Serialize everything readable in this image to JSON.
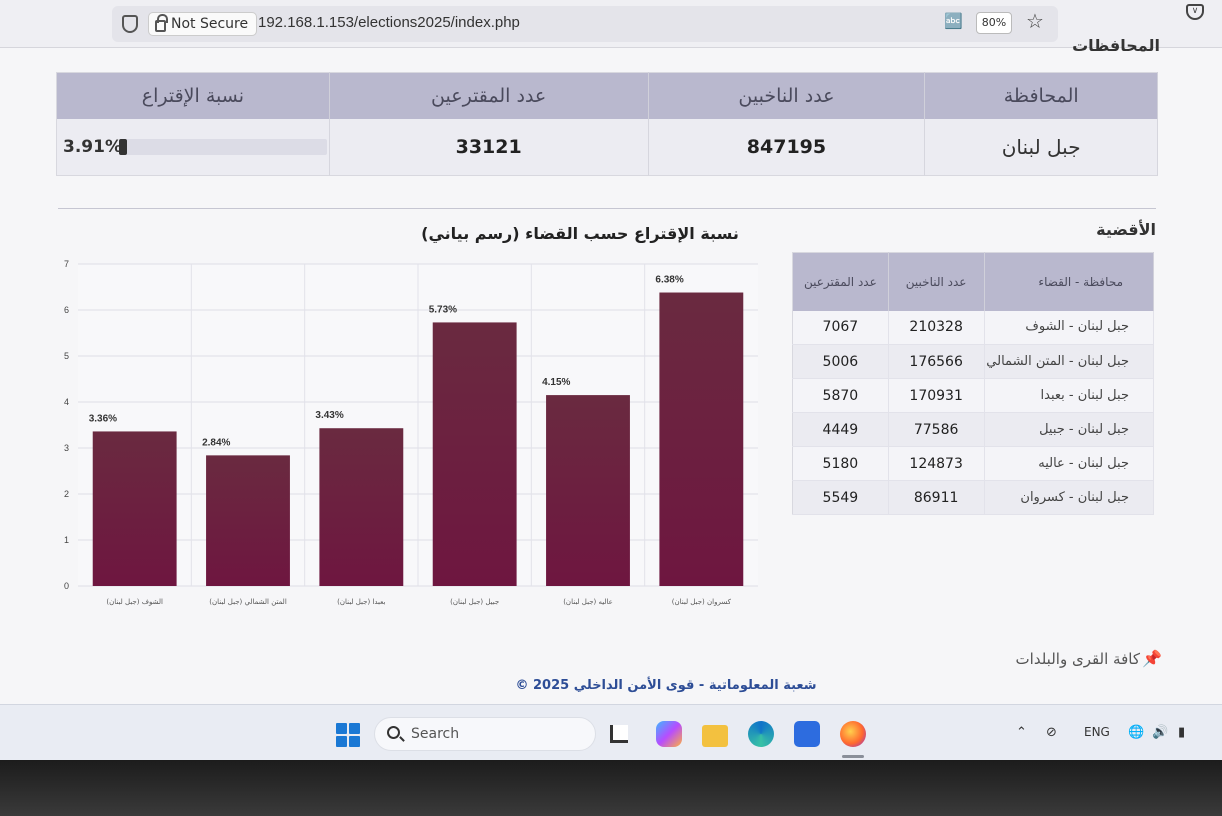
{
  "browser": {
    "not_secure": "Not Secure",
    "url": "192.168.1.153/elections2025/index.php",
    "zoom": "80%"
  },
  "governorates": {
    "section_title": "المحافظات",
    "headers": [
      "المحافظة",
      "عدد الناخبين",
      "عدد المقترعين",
      "نسبة الإقتراع"
    ],
    "row": {
      "name": "جبل لبنان",
      "voters": "847195",
      "ballots": "33121",
      "turnout": "3.91%",
      "turnout_fraction": 0.0391
    }
  },
  "districts": {
    "section_title": "الأقضية",
    "headers": [
      "محافظة - القضاء",
      "عدد الناخبين",
      "عدد المقترعين"
    ],
    "rows": [
      {
        "name": "جبل لبنان - الشوف",
        "voters": "210328",
        "ballots": "7067"
      },
      {
        "name": "جبل لبنان - المتن الشمالي",
        "voters": "176566",
        "ballots": "5006"
      },
      {
        "name": "جبل لبنان - بعبدا",
        "voters": "170931",
        "ballots": "5870"
      },
      {
        "name": "جبل لبنان - جبيل",
        "voters": "77586",
        "ballots": "4449"
      },
      {
        "name": "جبل لبنان - عاليه",
        "voters": "124873",
        "ballots": "5180"
      },
      {
        "name": "جبل لبنان - كسروان",
        "voters": "86911",
        "ballots": "5549"
      }
    ]
  },
  "chart_data": {
    "type": "bar",
    "title": "نسبة الإقتراع حسب القضاء (رسم بياني)",
    "categories": [
      "الشوف (جبل لبنان)",
      "المتن الشمالي (جبل لبنان)",
      "بعبدا (جبل لبنان)",
      "جبيل (جبل لبنان)",
      "عاليه (جبل لبنان)",
      "كسروان (جبل لبنان)"
    ],
    "values": [
      3.36,
      2.84,
      3.43,
      5.73,
      4.15,
      6.38
    ],
    "data_labels": [
      "3.36%",
      "2.84%",
      "3.43%",
      "5.73%",
      "4.15%",
      "6.38%"
    ],
    "ylim": [
      0,
      7
    ],
    "yticks": [
      0,
      1,
      2,
      3,
      4,
      5,
      6,
      7
    ],
    "grid": true,
    "bar_color": "#6e1640"
  },
  "links": {
    "all_villages": "كافة القرى والبلدات"
  },
  "footer": "© شعبة المعلوماتية - قوى الأمن الداخلي 2025",
  "taskbar": {
    "search_placeholder": "Search",
    "language": "ENG"
  }
}
